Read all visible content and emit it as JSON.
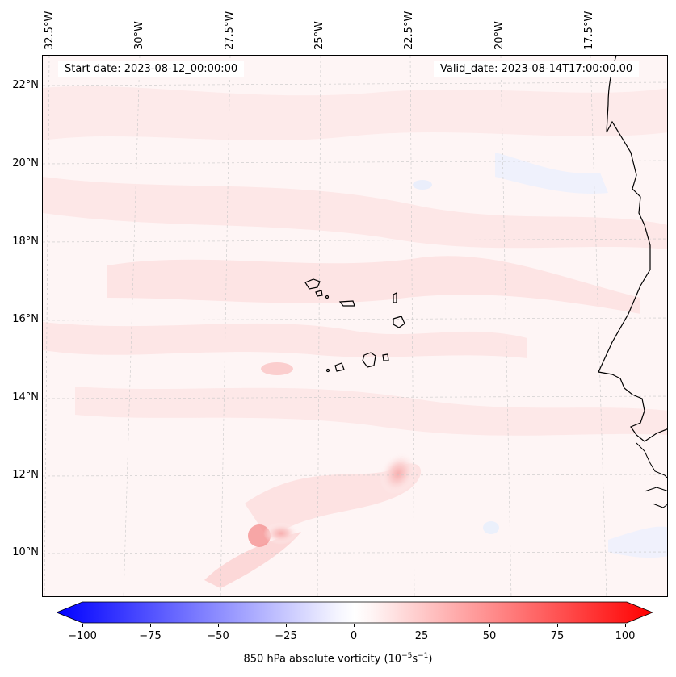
{
  "header": {
    "start_date": "Start date: 2023-08-12_00:00:00",
    "valid_date": "Valid_date: 2023-08-14T17:00:00.00"
  },
  "axes": {
    "longitude_labels": [
      "32.5°W",
      "30°W",
      "27.5°W",
      "25°W",
      "22.5°W",
      "20°W",
      "17.5°W"
    ],
    "latitude_labels": [
      "22°N",
      "20°N",
      "18°N",
      "16°N",
      "14°N",
      "12°N",
      "10°N"
    ]
  },
  "colorbar": {
    "ticks": [
      "−100",
      "−75",
      "−50",
      "−25",
      "0",
      "25",
      "50",
      "75",
      "100"
    ],
    "label_prefix": "850 hPa absolute vorticity (10",
    "label_exp1": "−5",
    "label_mid": "s",
    "label_exp2": "−1",
    "label_suffix": ")",
    "min": -100,
    "max": 100,
    "low_color": "#0000ff",
    "mid_color": "#ffffff",
    "high_color": "#ff0000"
  },
  "colors": {
    "background": "#fef6f6",
    "coastline": "#000000",
    "gridline": "#c8c8c8"
  }
}
